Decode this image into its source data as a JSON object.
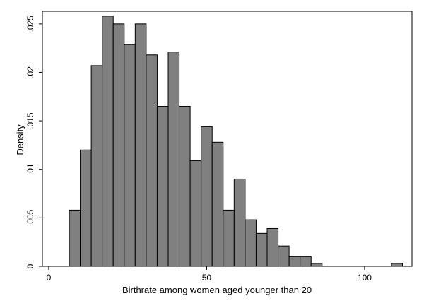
{
  "chart_data": {
    "type": "bar",
    "subtype": "histogram",
    "xlabel": "Birthrate among women aged younger than 20",
    "ylabel": "Density",
    "xlim": [
      -2,
      115
    ],
    "ylim": [
      0,
      0.0263
    ],
    "xticks": [
      0,
      50,
      100
    ],
    "xtick_labels": [
      "0",
      "50",
      "100"
    ],
    "yticks": [
      0,
      0.005,
      0.01,
      0.015,
      0.02,
      0.025
    ],
    "ytick_labels": [
      "0",
      ".005",
      ".01",
      ".015",
      ".02",
      ".025"
    ],
    "bin_width": 3.48,
    "grid": false,
    "legend": "none",
    "bar_color": "#808080",
    "bar_edge_color": "#000000",
    "bins": [
      {
        "x0": 6.5,
        "x1": 9.98,
        "y": 0.0058
      },
      {
        "x0": 9.98,
        "x1": 13.46,
        "y": 0.012
      },
      {
        "x0": 13.46,
        "x1": 16.94,
        "y": 0.0207
      },
      {
        "x0": 16.94,
        "x1": 20.42,
        "y": 0.0258
      },
      {
        "x0": 20.42,
        "x1": 23.9,
        "y": 0.025
      },
      {
        "x0": 23.9,
        "x1": 27.38,
        "y": 0.0229
      },
      {
        "x0": 27.38,
        "x1": 30.86,
        "y": 0.025
      },
      {
        "x0": 30.86,
        "x1": 34.34,
        "y": 0.0218
      },
      {
        "x0": 34.34,
        "x1": 37.82,
        "y": 0.0165
      },
      {
        "x0": 37.82,
        "x1": 41.3,
        "y": 0.0221
      },
      {
        "x0": 41.3,
        "x1": 44.78,
        "y": 0.0165
      },
      {
        "x0": 44.78,
        "x1": 48.26,
        "y": 0.0109
      },
      {
        "x0": 48.26,
        "x1": 51.74,
        "y": 0.0144
      },
      {
        "x0": 51.74,
        "x1": 55.22,
        "y": 0.0128
      },
      {
        "x0": 55.22,
        "x1": 58.7,
        "y": 0.0058
      },
      {
        "x0": 58.7,
        "x1": 62.18,
        "y": 0.009
      },
      {
        "x0": 62.18,
        "x1": 65.66,
        "y": 0.0048
      },
      {
        "x0": 65.66,
        "x1": 69.14,
        "y": 0.0034
      },
      {
        "x0": 69.14,
        "x1": 72.62,
        "y": 0.0039
      },
      {
        "x0": 72.62,
        "x1": 76.1,
        "y": 0.0021
      },
      {
        "x0": 76.1,
        "x1": 79.58,
        "y": 0.001
      },
      {
        "x0": 79.58,
        "x1": 83.06,
        "y": 0.001
      },
      {
        "x0": 83.06,
        "x1": 86.54,
        "y": 0.0003
      },
      {
        "x0": 108.5,
        "x1": 111.98,
        "y": 0.0003
      }
    ]
  }
}
